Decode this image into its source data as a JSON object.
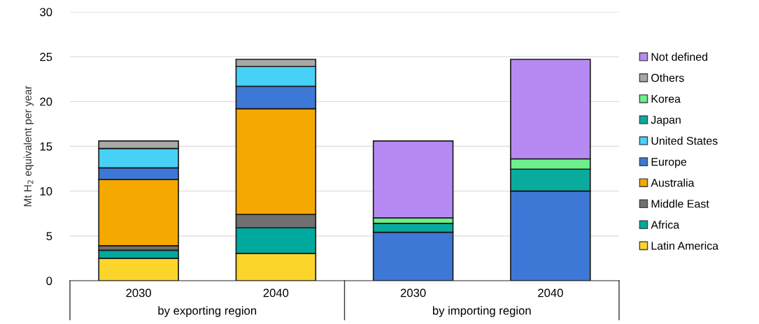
{
  "chart_data": {
    "type": "bar",
    "stacked": true,
    "ylabel": "Mt H$_{2}$ equivalent per year",
    "categories": [
      "2030",
      "2040",
      "2030",
      "2040"
    ],
    "annotations": [
      "by exporting region",
      "by importing region"
    ],
    "series": [
      {
        "name": "Latin America",
        "color": "#fbd52a",
        "values": [
          2.5,
          3.05,
          null,
          null
        ]
      },
      {
        "name": "Africa",
        "color": "#00a99d",
        "values": [
          0.9,
          2.85,
          null,
          null
        ]
      },
      {
        "name": "Middle East",
        "color": "#707070",
        "values": [
          0.5,
          1.5,
          null,
          null
        ]
      },
      {
        "name": "Australia",
        "color": "#f5a800",
        "values": [
          7.4,
          11.8,
          null,
          null
        ]
      },
      {
        "name": "Europe",
        "color": "#3e78d6",
        "values": [
          1.3,
          2.5,
          5.4,
          10.0
        ]
      },
      {
        "name": "United States",
        "color": "#47d1f7",
        "values": [
          2.15,
          2.2,
          null,
          null
        ]
      },
      {
        "name": "Japan",
        "color": "#0aab9f",
        "values": [
          null,
          null,
          1.0,
          2.45
        ]
      },
      {
        "name": "Korea",
        "color": "#6cf08a",
        "values": [
          null,
          null,
          0.6,
          1.15
        ]
      },
      {
        "name": "Others",
        "color": "#a8a8a8",
        "values": [
          0.85,
          0.8,
          null,
          null
        ]
      },
      {
        "name": "Not defined",
        "color": "#b68af2",
        "values": [
          null,
          null,
          8.6,
          11.1
        ]
      }
    ],
    "ylim": [
      0,
      30
    ],
    "yticks": [
      0,
      5,
      10,
      15,
      20,
      25,
      30
    ],
    "grid": "y",
    "legend": "right"
  }
}
